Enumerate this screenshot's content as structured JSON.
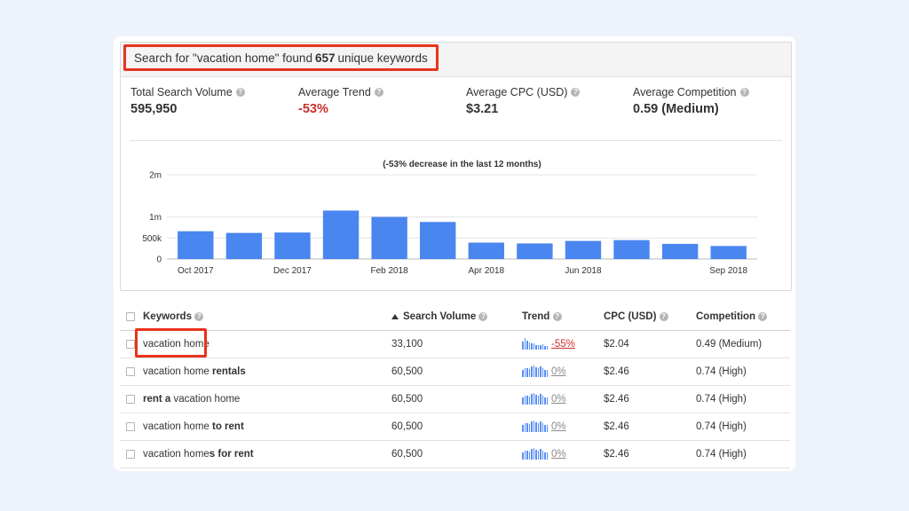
{
  "summary": {
    "headline_prefix": "Search for \"vacation home\" found",
    "headline_count": "657",
    "headline_suffix": "unique keywords",
    "stats": [
      {
        "label": "Total Search Volume",
        "value": "595,950"
      },
      {
        "label": "Average Trend",
        "value": "-53%"
      },
      {
        "label": "Average CPC (USD)",
        "value": "$3.21"
      },
      {
        "label": "Average Competition",
        "value": "0.59 (Medium)"
      }
    ],
    "help_glyph": "?"
  },
  "chart_data": {
    "type": "bar",
    "title": "(-53% decrease in the last 12 months)",
    "x": [
      "Oct 2017",
      "Nov 2017",
      "Dec 2017",
      "Jan 2018",
      "Feb 2018",
      "Mar 2018",
      "Apr 2018",
      "May 2018",
      "Jun 2018",
      "Jul 2018",
      "Aug 2018",
      "Sep 2018"
    ],
    "tick_labels": [
      "Oct 2017",
      "",
      "Dec 2017",
      "",
      "Feb 2018",
      "",
      "Apr 2018",
      "",
      "Jun 2018",
      "",
      "",
      "Sep 2018"
    ],
    "values": [
      660000,
      620000,
      630000,
      1150000,
      1000000,
      880000,
      390000,
      370000,
      430000,
      450000,
      360000,
      310000
    ],
    "ylim": [
      0,
      2000000
    ],
    "yticks": [
      {
        "value": 0,
        "label": "0"
      },
      {
        "value": 500000,
        "label": "500k"
      },
      {
        "value": 1000000,
        "label": "1m"
      },
      {
        "value": 2000000,
        "label": "2m"
      }
    ],
    "grid": true,
    "bar_color": "#4a86f0"
  },
  "table": {
    "columns": [
      "Keywords",
      "Search Volume",
      "Trend",
      "CPC (USD)",
      "Competition"
    ],
    "rows": [
      {
        "kw_plain": "vacation home",
        "kw_bold": "",
        "kw_parts": [
          {
            "t": "vacation home",
            "b": false
          }
        ],
        "volume": "33,100",
        "trend": "-55%",
        "trend_neg": true,
        "cpc": "$2.04",
        "competition": "0.49 (Medium)",
        "spark": [
          0.7,
          1,
          0.8,
          0.6,
          0.55,
          0.5,
          0.4,
          0.35,
          0.4,
          0.45,
          0.3,
          0.3
        ]
      },
      {
        "kw_parts": [
          {
            "t": "vacation home ",
            "b": false
          },
          {
            "t": "rentals",
            "b": true
          }
        ],
        "volume": "60,500",
        "trend": "0%",
        "trend_neg": false,
        "cpc": "$2.46",
        "competition": "0.74 (High)",
        "spark": [
          0.6,
          0.75,
          0.8,
          0.7,
          0.95,
          1,
          0.85,
          0.75,
          0.9,
          0.8,
          0.65,
          0.6
        ]
      },
      {
        "kw_parts": [
          {
            "t": "rent a ",
            "b": true
          },
          {
            "t": "vacation home",
            "b": false
          }
        ],
        "volume": "60,500",
        "trend": "0%",
        "trend_neg": false,
        "cpc": "$2.46",
        "competition": "0.74 (High)",
        "spark": [
          0.6,
          0.75,
          0.8,
          0.7,
          0.95,
          1,
          0.85,
          0.75,
          0.9,
          0.8,
          0.65,
          0.6
        ]
      },
      {
        "kw_parts": [
          {
            "t": "vacation home ",
            "b": false
          },
          {
            "t": "to rent",
            "b": true
          }
        ],
        "volume": "60,500",
        "trend": "0%",
        "trend_neg": false,
        "cpc": "$2.46",
        "competition": "0.74 (High)",
        "spark": [
          0.6,
          0.75,
          0.8,
          0.7,
          0.95,
          1,
          0.85,
          0.75,
          0.9,
          0.8,
          0.65,
          0.6
        ]
      },
      {
        "kw_parts": [
          {
            "t": "vacation home",
            "b": false
          },
          {
            "t": "s for rent",
            "b": true
          }
        ],
        "volume": "60,500",
        "trend": "0%",
        "trend_neg": false,
        "cpc": "$2.46",
        "competition": "0.74 (High)",
        "spark": [
          0.6,
          0.75,
          0.8,
          0.7,
          0.95,
          1,
          0.85,
          0.75,
          0.9,
          0.8,
          0.65,
          0.6
        ]
      }
    ]
  }
}
